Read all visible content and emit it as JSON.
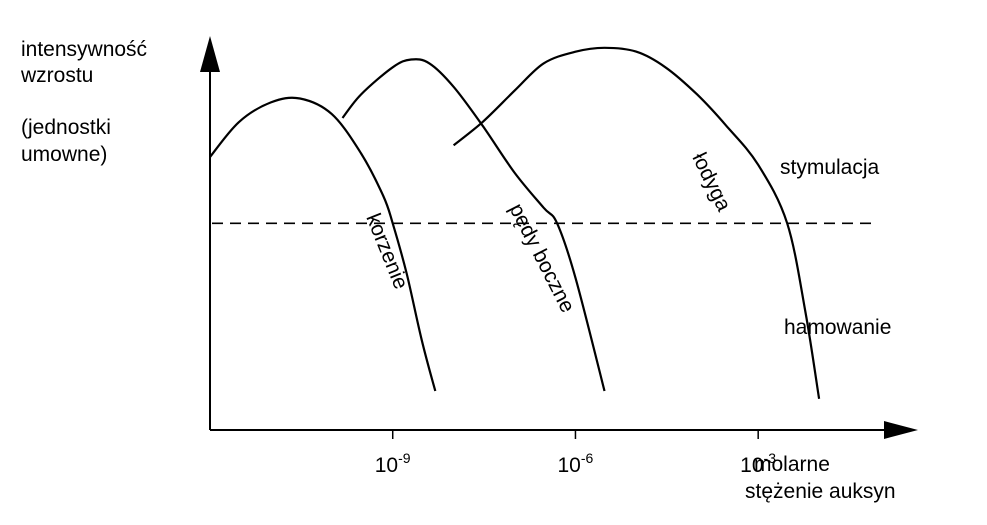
{
  "chart_data": {
    "type": "line",
    "ylabel": [
      "intensywność",
      "wzrostu",
      "(jednostki",
      "umowne)"
    ],
    "xlabel": [
      "molarne",
      "stężenie auksyn"
    ],
    "x_scale": "log",
    "x_ticks": [
      {
        "value": 1e-09,
        "base": "10",
        "exp": "-9"
      },
      {
        "value": 1e-06,
        "base": "10",
        "exp": "-6"
      },
      {
        "value": 0.001,
        "base": "10",
        "exp": "-3"
      }
    ],
    "xlim": [
      1e-12,
      0.1
    ],
    "ylim": [
      0,
      10
    ],
    "threshold_y": 5.3,
    "region_labels": {
      "above": "stymulacja",
      "below": "hamowanie"
    },
    "series": [
      {
        "name": "korzenie",
        "x": [
          1e-12,
          3e-12,
          1e-11,
          3e-11,
          1e-10,
          3e-10,
          7e-10,
          1e-09,
          1.7e-09,
          3e-09,
          5e-09
        ],
        "y": [
          7.0,
          7.9,
          8.4,
          8.5,
          8.1,
          7.1,
          6.0,
          5.3,
          4.0,
          2.3,
          1.0
        ]
      },
      {
        "name": "pędy boczne",
        "x": [
          1.5e-10,
          3e-10,
          1e-09,
          2e-09,
          4e-09,
          1e-08,
          3e-08,
          1e-07,
          3e-07,
          5e-07,
          1e-06,
          3e-06
        ],
        "y": [
          8.0,
          8.6,
          9.3,
          9.5,
          9.4,
          8.8,
          7.8,
          6.6,
          5.7,
          5.3,
          3.9,
          1.0
        ]
      },
      {
        "name": "łodyga",
        "x": [
          1e-08,
          3e-08,
          1e-07,
          3e-07,
          1e-06,
          3e-06,
          1e-05,
          3e-05,
          0.0001,
          0.0003,
          0.001,
          0.003,
          0.006,
          0.01
        ],
        "y": [
          7.3,
          7.9,
          8.7,
          9.4,
          9.7,
          9.8,
          9.7,
          9.3,
          8.6,
          7.8,
          6.8,
          5.3,
          3.0,
          0.8
        ]
      }
    ]
  }
}
